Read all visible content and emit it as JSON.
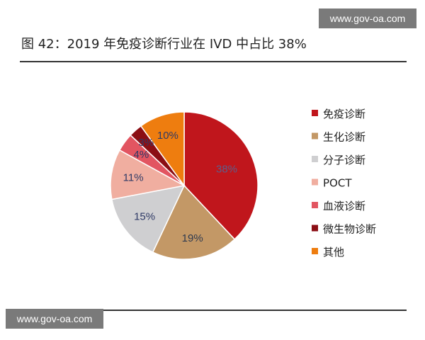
{
  "watermark": {
    "top": "www.gov-oa.com",
    "bottom": "www.gov-oa.com"
  },
  "chart_data": {
    "type": "pie",
    "title": "图 42：2019 年免疫诊断行业在 IVD 中占比 38%",
    "legend_position": "right",
    "slices": [
      {
        "label": "免疫诊断",
        "value": 38,
        "display": "38%",
        "color": "#c0161c",
        "text_color": "#5b5f8c"
      },
      {
        "label": "生化诊断",
        "value": 19,
        "display": "19%",
        "color": "#c39866",
        "text_color": "#2f3a4f"
      },
      {
        "label": "分子诊断",
        "value": 15,
        "display": "15%",
        "color": "#cfcfd1",
        "text_color": "#2f3a66"
      },
      {
        "label": "POCT",
        "value": 11,
        "display": "11%",
        "color": "#f0aea0",
        "text_color": "#2f3a66"
      },
      {
        "label": "血液诊断",
        "value": 4,
        "display": "4%",
        "color": "#e25561",
        "text_color": "#2f3a66"
      },
      {
        "label": "微生物诊断",
        "value": 3,
        "display": "3%",
        "color": "#8b0e14",
        "text_color": "#2f3a66"
      },
      {
        "label": "其他",
        "value": 10,
        "display": "10%",
        "color": "#ee7d0f",
        "text_color": "#2f3a66"
      }
    ]
  }
}
